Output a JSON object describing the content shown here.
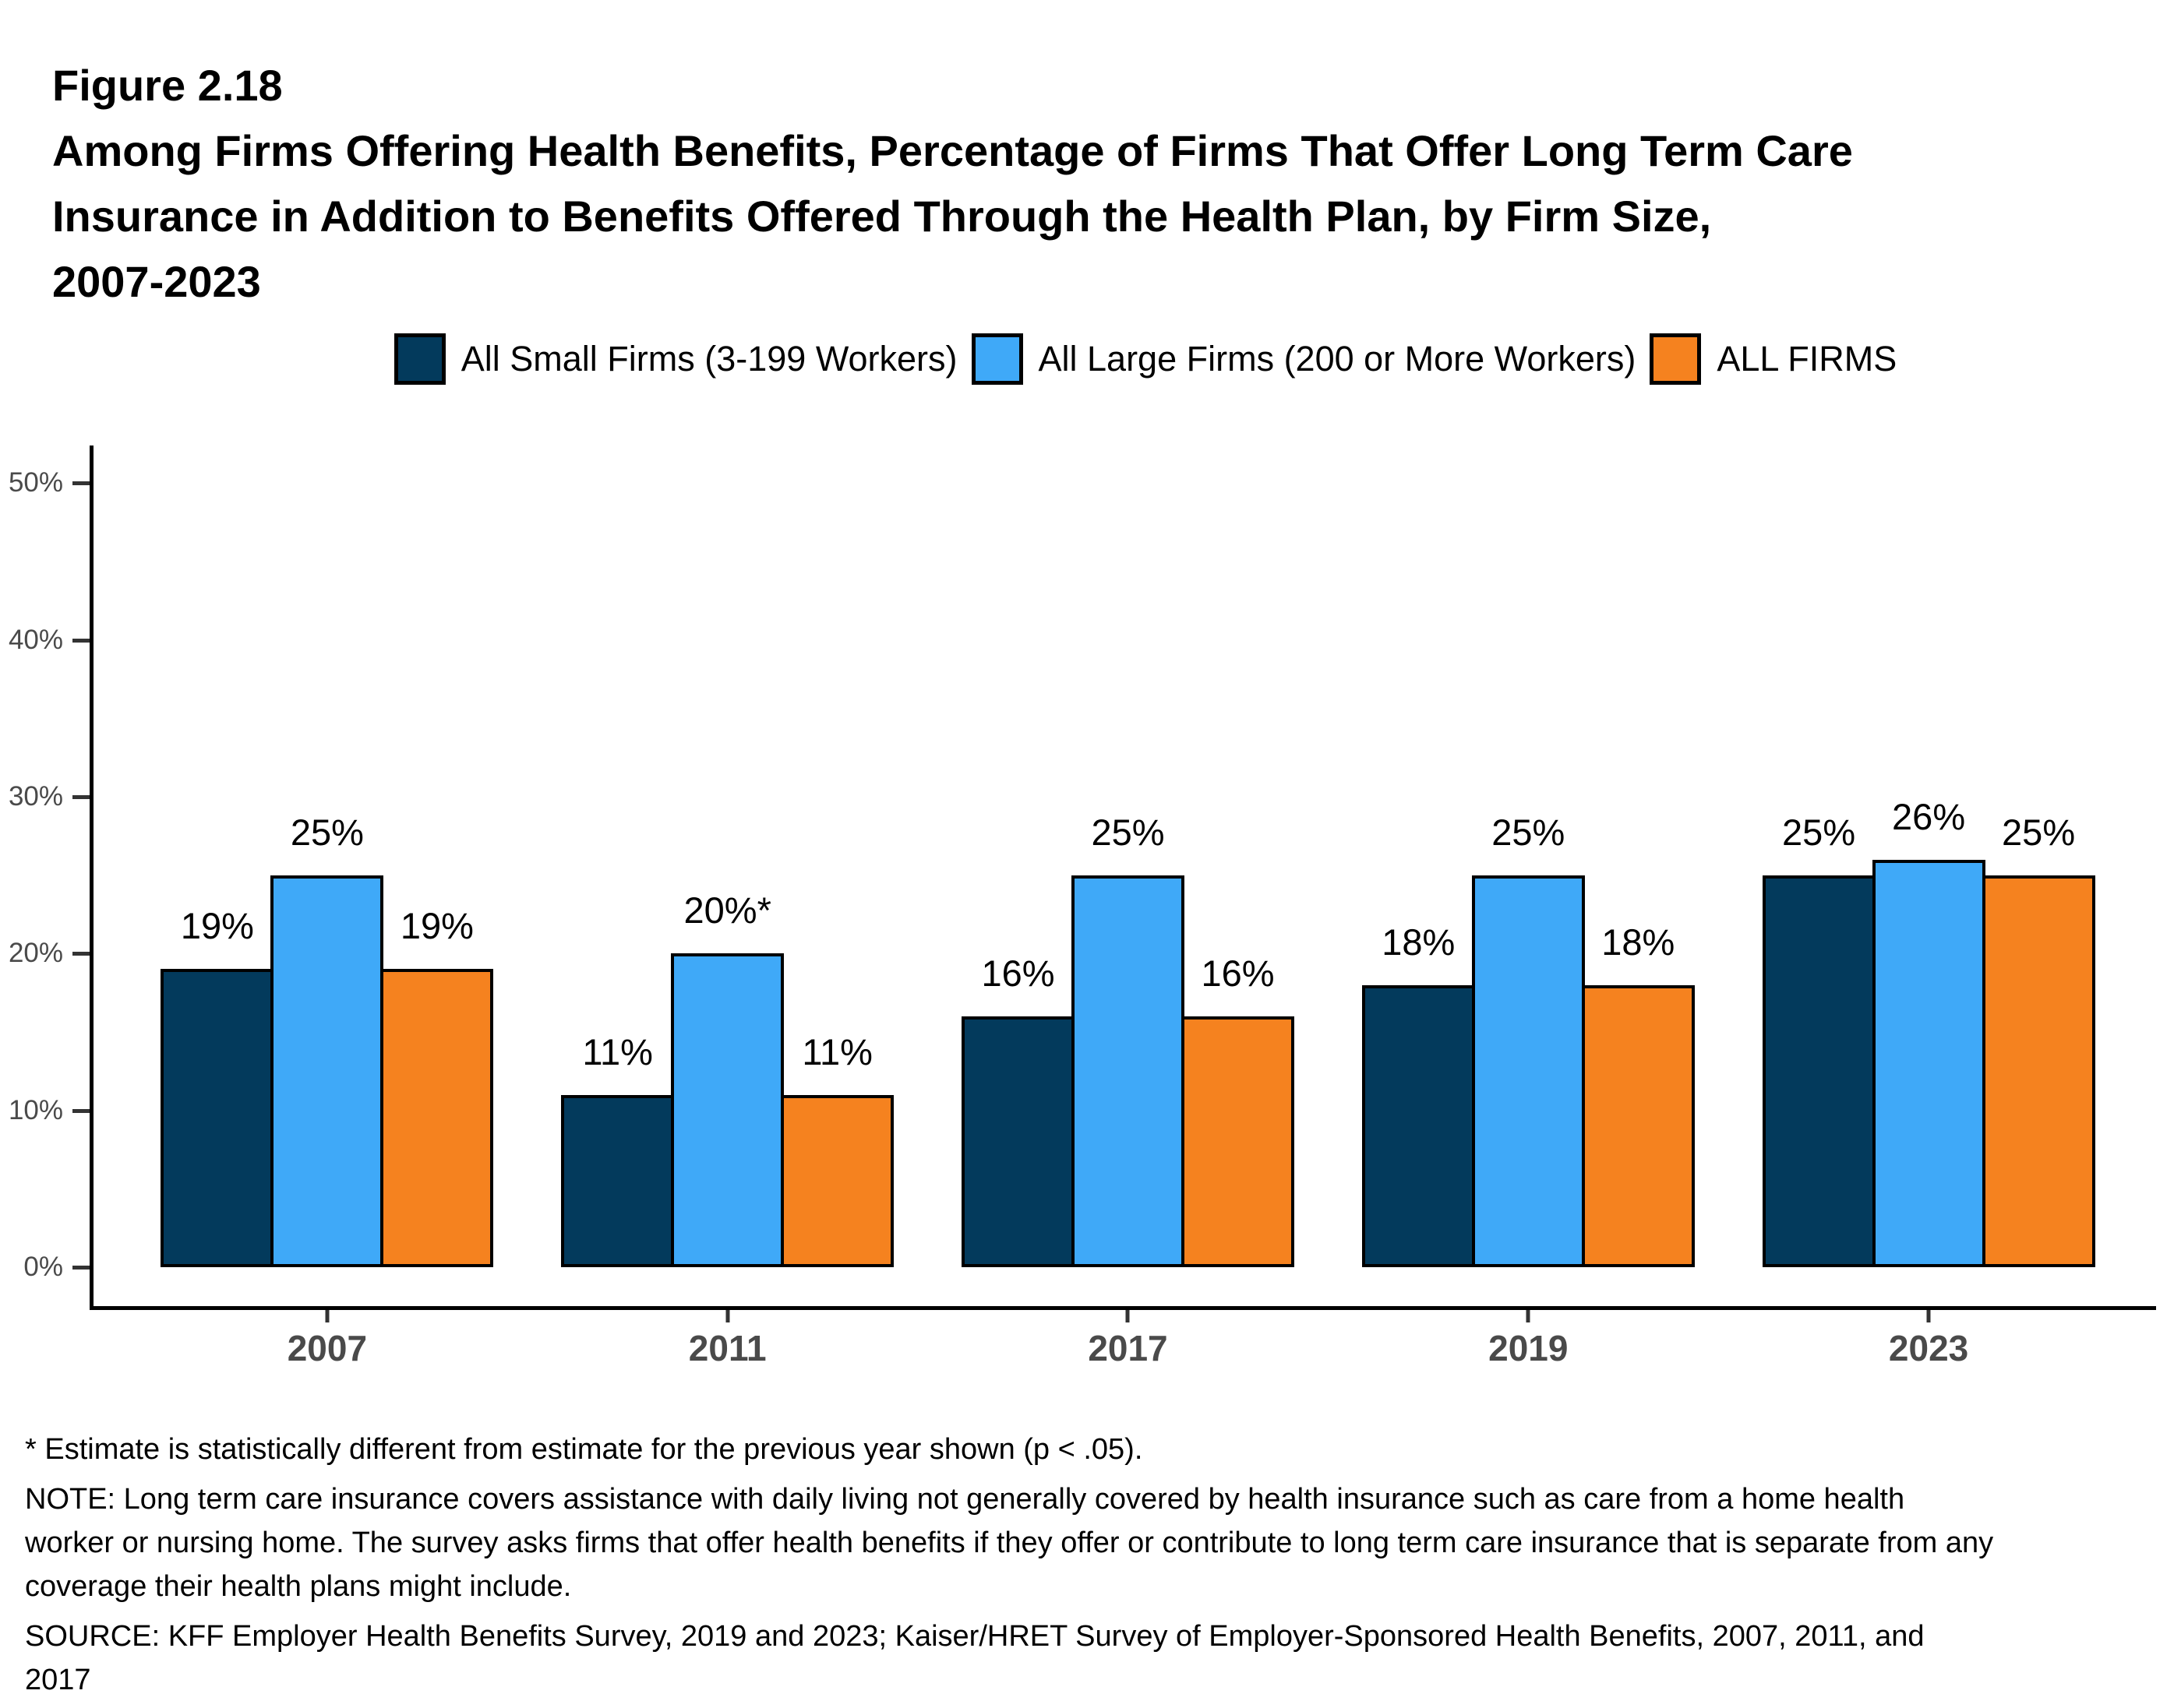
{
  "figure": {
    "label": "Figure 2.18",
    "title_lines": [
      "Among Firms Offering Health Benefits, Percentage of Firms That Offer Long Term Care",
      "Insurance in Addition to Benefits Offered Through the Health Plan, by Firm Size,",
      "2007-2023"
    ]
  },
  "legend": {
    "items": [
      {
        "label": "All Small Firms (3-199 Workers)",
        "color": "#033A5C"
      },
      {
        "label": "All Large Firms (200 or More Workers)",
        "color": "#3FA9F8"
      },
      {
        "label": "ALL FIRMS",
        "color": "#F5821F"
      }
    ]
  },
  "chart_data": {
    "type": "bar",
    "title": "Among Firms Offering Health Benefits, Percentage of Firms That Offer Long Term Care Insurance in Addition to Benefits Offered Through the Health Plan, by Firm Size, 2007-2023",
    "categories": [
      "2007",
      "2011",
      "2017",
      "2019",
      "2023"
    ],
    "series": [
      {
        "name": "All Small Firms (3-199 Workers)",
        "color": "#033A5C",
        "values": [
          19,
          11,
          16,
          18,
          25
        ],
        "labels": [
          "19%",
          "11%",
          "16%",
          "18%",
          "25%"
        ]
      },
      {
        "name": "All Large Firms (200 or More Workers)",
        "color": "#3FA9F8",
        "values": [
          25,
          20,
          25,
          25,
          26
        ],
        "labels": [
          "25%",
          "20%*",
          "25%",
          "25%",
          "26%"
        ]
      },
      {
        "name": "ALL FIRMS",
        "color": "#F5821F",
        "values": [
          19,
          11,
          16,
          18,
          25
        ],
        "labels": [
          "19%",
          "11%",
          "16%",
          "18%",
          "25%"
        ]
      }
    ],
    "xlabel": "",
    "ylabel": "",
    "ylim": [
      0,
      52.4
    ],
    "ytick_values": [
      0,
      10,
      20,
      30,
      40,
      50
    ],
    "ytick_labels": [
      "0%",
      "10%",
      "20%",
      "30%",
      "40%",
      "50%"
    ],
    "grid": false,
    "legend_position": "top",
    "bar_value_suffix": "%"
  },
  "footnotes": [
    "* Estimate is statistically different from estimate for the previous year shown (p < .05).",
    "NOTE: Long term care insurance covers assistance with daily living not generally covered by health insurance such as care from a home health worker or nursing home. The survey asks firms that offer health benefits if they offer or contribute to long term care insurance that is separate from any coverage their health plans might include.",
    "SOURCE: KFF Employer Health Benefits Survey, 2019 and 2023; Kaiser/HRET Survey of Employer-Sponsored Health Benefits, 2007, 2011, and 2017"
  ],
  "colors": {
    "axis_line": "#000000",
    "tick_mark": "#333333",
    "axis_text": "#4a4a4a",
    "bar_border": "#000000"
  }
}
